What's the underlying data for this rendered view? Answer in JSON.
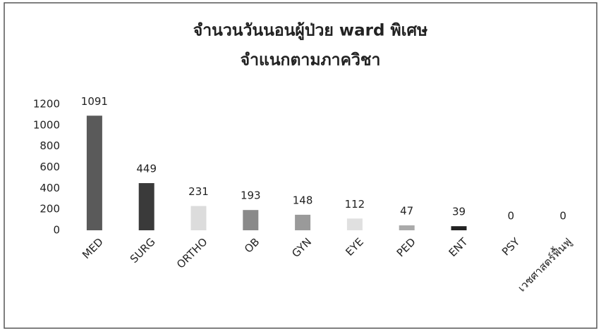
{
  "chart_data": {
    "type": "bar",
    "title": "จำนวนวันนอนผู้ป่วย ward พิเศษ",
    "subtitle": "จำแนกตามภาควิชา",
    "categories": [
      "MED",
      "SURG",
      "ORTHO",
      "OB",
      "GYN",
      "EYE",
      "PED",
      "ENT",
      "PSY",
      "เวชศาสตร์ฟื้นฟู"
    ],
    "values": [
      1091,
      449,
      231,
      193,
      148,
      112,
      47,
      39,
      0,
      0
    ],
    "colors": [
      "#5a5a5a",
      "#3a3a3a",
      "#dcdcdc",
      "#8a8a8a",
      "#9a9a9a",
      "#e0e0e0",
      "#aaaaaa",
      "#222222",
      "#cccccc",
      "#cccccc"
    ],
    "ylim": [
      0,
      1200
    ],
    "yticks": [
      0,
      200,
      400,
      600,
      800,
      1000,
      1200
    ],
    "grid": false
  }
}
